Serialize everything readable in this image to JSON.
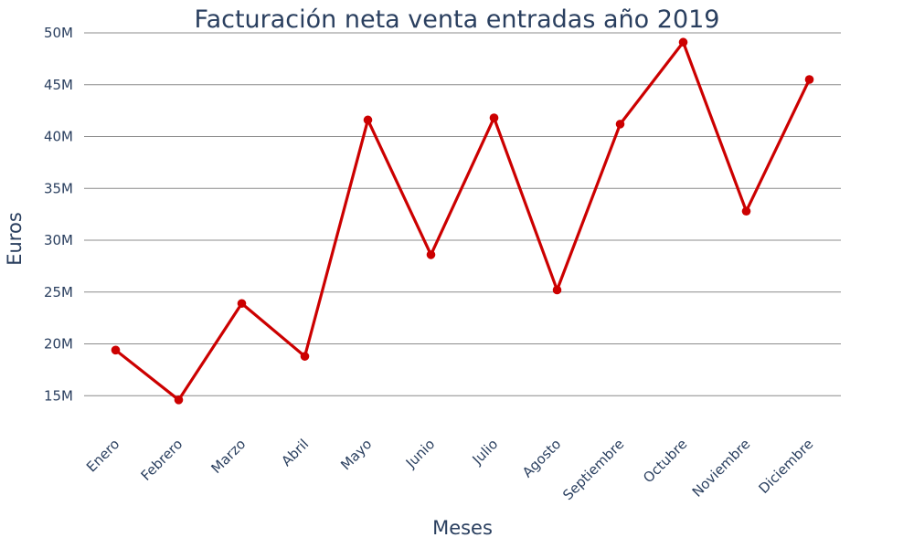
{
  "chart_data": {
    "type": "line",
    "title": "Facturación neta venta entradas año 2019",
    "xlabel": "Meses",
    "ylabel": "Euros",
    "categories": [
      "Enero",
      "Febrero",
      "Marzo",
      "Abril",
      "Mayo",
      "Junio",
      "Julio",
      "Agosto",
      "Septiembre",
      "Octubre",
      "Noviembre",
      "Diciembre"
    ],
    "series": [
      {
        "name": "",
        "color": "#cc0000",
        "values": [
          19.4,
          14.6,
          23.9,
          18.8,
          41.6,
          28.6,
          41.8,
          25.2,
          41.2,
          49.1,
          32.8,
          45.5
        ]
      }
    ],
    "yticks": [
      15,
      20,
      25,
      30,
      35,
      40,
      45,
      50
    ],
    "ytick_labels": [
      "15M",
      "20M",
      "25M",
      "30M",
      "35M",
      "40M",
      "45M",
      "50M"
    ],
    "ylim": [
      11.5,
      50
    ],
    "unit": "M",
    "grid": true,
    "legend": "none"
  }
}
